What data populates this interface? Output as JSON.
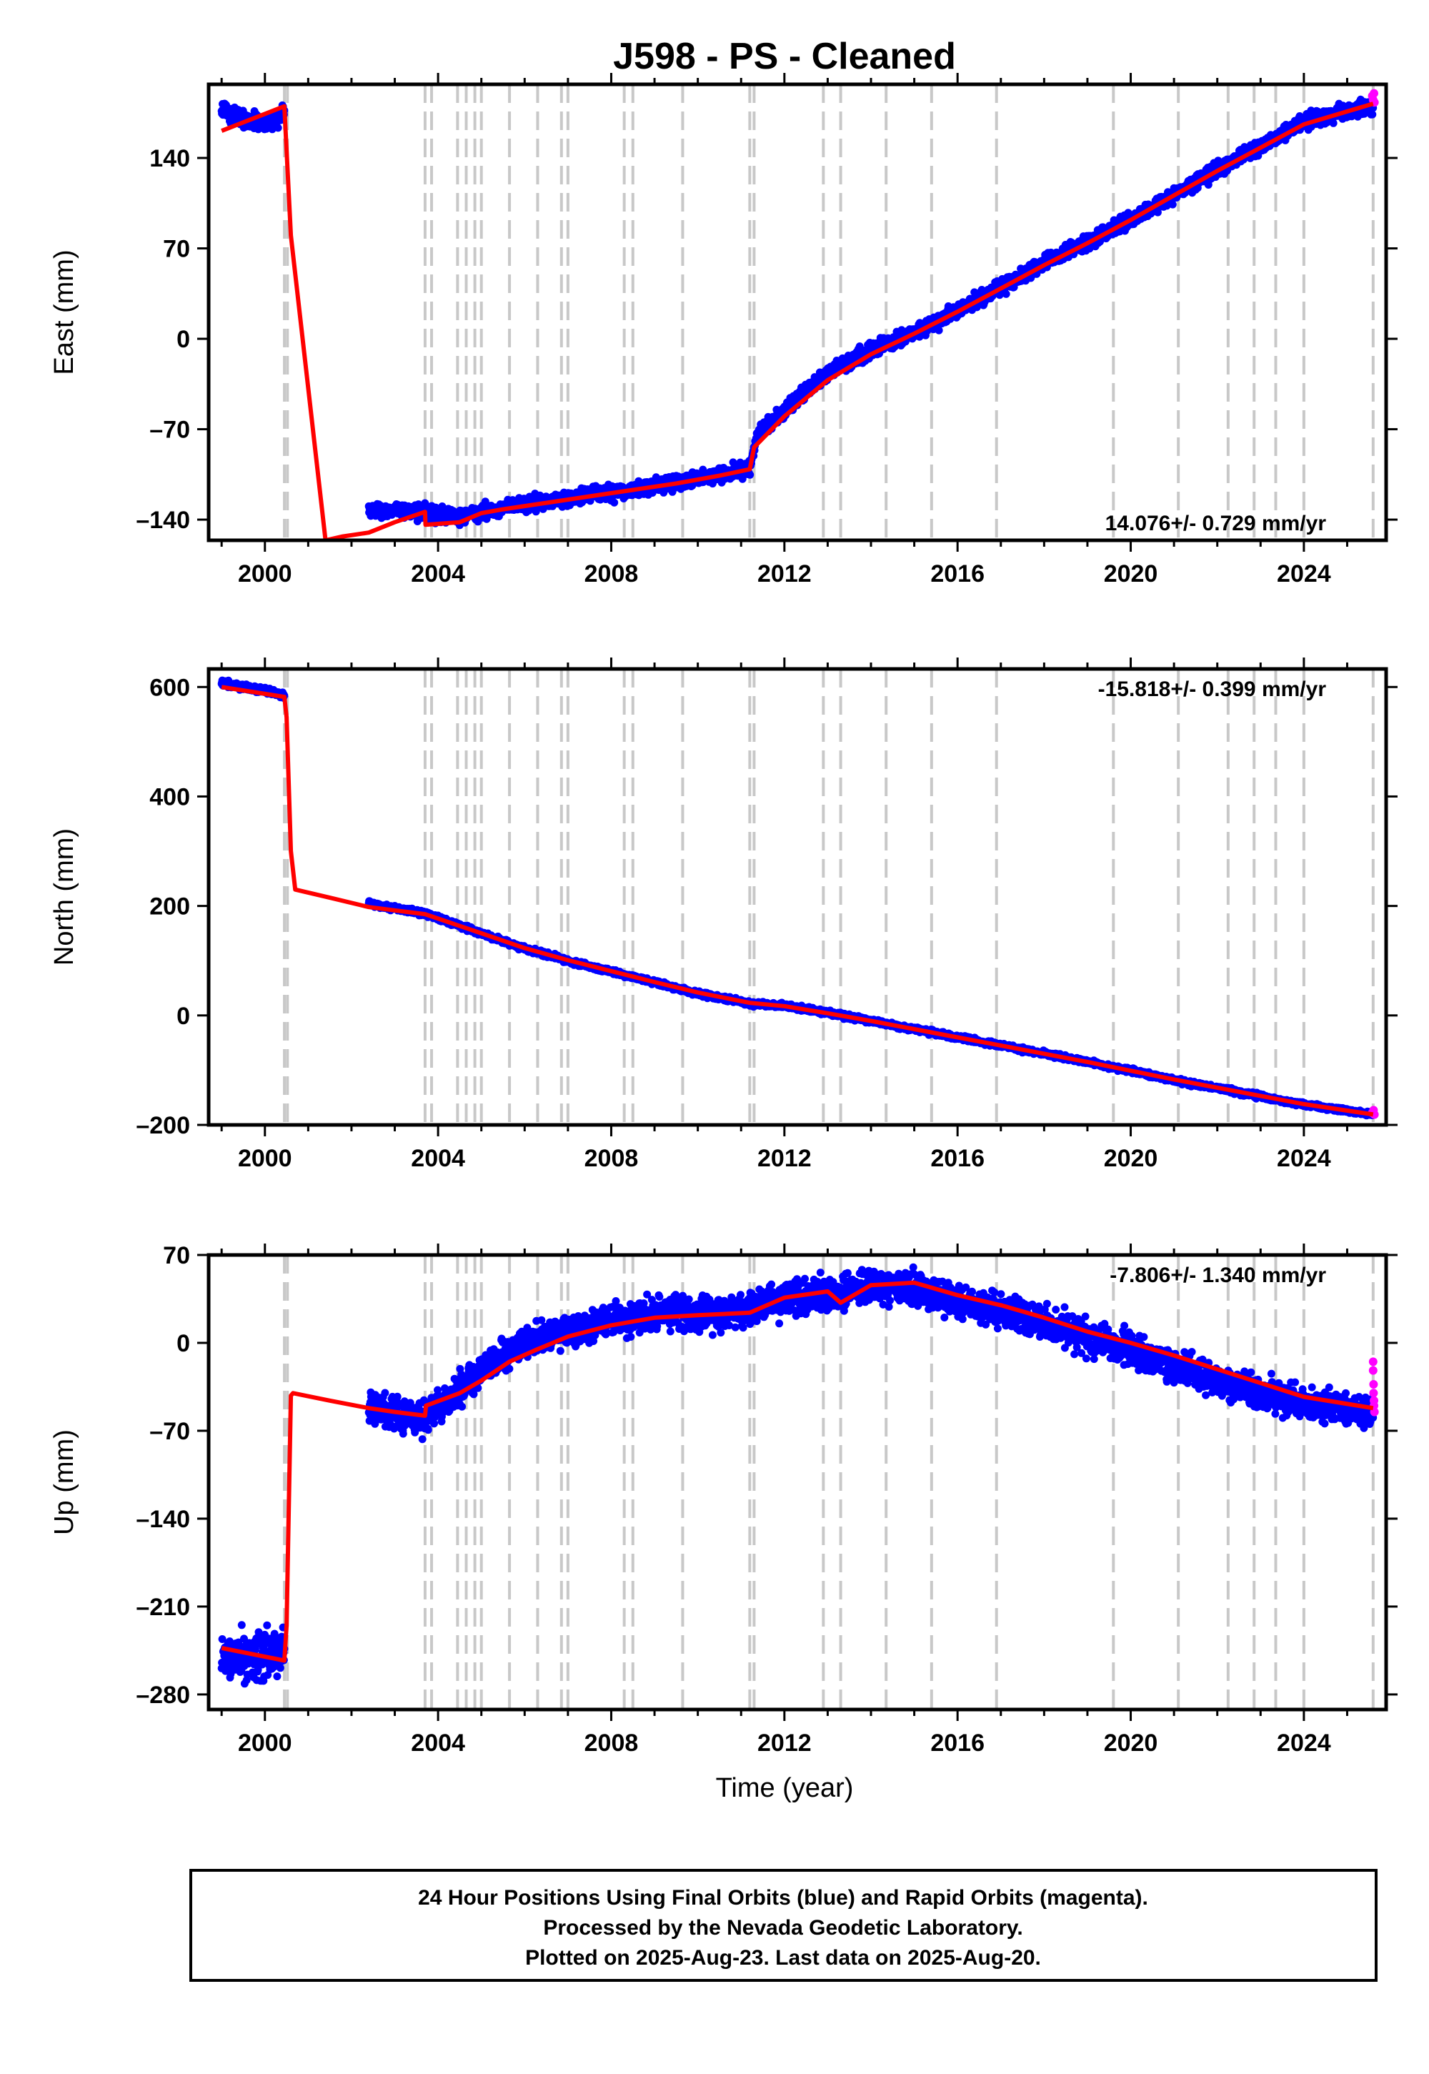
{
  "chart_data": {
    "title": "J598  - PS - Cleaned",
    "type": "scatter",
    "xlabel": "Time (year)",
    "xlim": [
      1998.7,
      2025.9
    ],
    "x_ticks": [
      2000,
      2004,
      2008,
      2012,
      2016,
      2020,
      2024
    ],
    "x_tick_labels": [
      "2000",
      "2004",
      "2008",
      "2012",
      "2016",
      "2020",
      "2024"
    ],
    "equipment_change_epochs": [
      2000.45,
      2000.52,
      2003.7,
      2003.85,
      2004.45,
      2004.65,
      2004.85,
      2005.0,
      2005.65,
      2006.3,
      2006.85,
      2007.0,
      2008.3,
      2008.5,
      2009.65,
      2011.2,
      2011.3,
      2012.9,
      2013.3,
      2014.35,
      2015.4,
      2016.9,
      2019.6,
      2021.1,
      2022.25,
      2022.85,
      2023.35,
      2024.0,
      2025.6
    ],
    "panels": [
      {
        "ylabel": "East (mm)",
        "ylim": [
          -156,
          197
        ],
        "y_ticks": [
          -140,
          -70,
          0,
          70,
          140
        ],
        "y_tick_labels": [
          "–140",
          "–70",
          "0",
          "70",
          "140"
        ],
        "rate": "14.076+/- 0.729 mm/yr",
        "rate_position": "bottom-right",
        "series": [
          {
            "x": [
              1999.0,
              1999.5,
              2000.0,
              2000.45
            ],
            "y": [
              178,
              170,
              166,
              175
            ],
            "style": "scatter",
            "color": "#0000ff",
            "noise": 5
          },
          {
            "x": [
              2002.4,
              2003.0,
              2003.7,
              2004.5,
              2005.5,
              2006.5,
              2007.5,
              2008.5,
              2009.5,
              2010.5,
              2011.2,
              2011.4,
              2012.0,
              2013.0,
              2014.0,
              2015.0,
              2016.0,
              2017.0,
              2018.0,
              2019.0,
              2020.0,
              2021.0,
              2022.0,
              2023.0,
              2024.0,
              2025.6
            ],
            "y": [
              -132,
              -133,
              -135,
              -138,
              -131,
              -126,
              -121,
              -117,
              -111,
              -106,
              -100,
              -73,
              -55,
              -26,
              -9,
              5,
              21,
              40,
              59,
              75,
              92,
              111,
              131,
              149,
              168,
              181
            ],
            "style": "scatter",
            "color": "#0000ff",
            "noise": 4
          },
          {
            "x": [
              2025.58,
              2025.6,
              2025.62,
              2025.63
            ],
            "y": [
              188,
              185,
              190,
              183
            ],
            "style": "scatter",
            "color": "#ff00ff"
          },
          {
            "x": [
              1999.0,
              2000.45,
              2000.48,
              2000.6,
              2001.4,
              2001.8,
              2002.4,
              2003.0,
              2003.7,
              2003.71,
              2004.5,
              2005.0,
              2005.5,
              2006.5,
              2007.5,
              2008.5,
              2009.5,
              2010.5,
              2011.2,
              2011.3,
              2012.0,
              2013.0,
              2014.0,
              2015.0,
              2016.0,
              2017.0,
              2018.0,
              2019.0,
              2020.0,
              2021.0,
              2022.0,
              2023.0,
              2024.0,
              2025.6
            ],
            "y": [
              161,
              180,
              160,
              80,
              -156,
              -153,
              -150,
              -142,
              -134,
              -144,
              -142,
              -135,
              -132,
              -127,
              -122,
              -117,
              -112,
              -106,
              -101,
              -84,
              -60,
              -32,
              -12,
              4,
              21,
              39,
              57,
              74,
              92,
              111,
              130,
              148,
              166,
              182
            ],
            "style": "line",
            "color": "#ff0000"
          }
        ]
      },
      {
        "ylabel": "North (mm)",
        "ylim": [
          -200,
          633
        ],
        "y_ticks": [
          -200,
          0,
          200,
          400,
          600
        ],
        "y_tick_labels": [
          "–200",
          "0",
          "200",
          "400",
          "600"
        ],
        "rate": "-15.818+/- 0.399 mm/yr",
        "rate_position": "top-right",
        "series": [
          {
            "x": [
              1999.0,
              1999.5,
              2000.0,
              2000.45
            ],
            "y": [
              608,
              600,
              594,
              584
            ],
            "style": "scatter",
            "color": "#0000ff",
            "noise": 4
          },
          {
            "x": [
              2002.4,
              2003.0,
              2003.7,
              2005.0,
              2006.0,
              2007.0,
              2008.0,
              2009.0,
              2010.0,
              2011.2,
              2012.0,
              2013.0,
              2014.0,
              2015.0,
              2016.0,
              2017.0,
              2018.0,
              2019.0,
              2020.0,
              2021.0,
              2022.0,
              2023.0,
              2024.0,
              2025.6
            ],
            "y": [
              205,
              195,
              186,
              150,
              122,
              100,
              80,
              60,
              40,
              22,
              18,
              5,
              -10,
              -25,
              -40,
              -55,
              -70,
              -85,
              -101,
              -118,
              -133,
              -148,
              -163,
              -181
            ],
            "style": "scatter",
            "color": "#0000ff",
            "noise": 3
          },
          {
            "x": [
              2025.58,
              2025.61,
              2025.63
            ],
            "y": [
              -178,
              -173,
              -181
            ],
            "style": "scatter",
            "color": "#ff00ff"
          },
          {
            "x": [
              1999.0,
              2000.45,
              2000.5,
              2000.6,
              2000.7,
              2001.5,
              2002.4,
              2003.0,
              2003.7,
              2005.0,
              2006.0,
              2007.0,
              2008.0,
              2009.0,
              2010.0,
              2011.2,
              2012.0,
              2013.0,
              2014.0,
              2015.0,
              2016.0,
              2017.0,
              2018.0,
              2019.0,
              2020.0,
              2021.0,
              2022.0,
              2023.0,
              2024.0,
              2025.6
            ],
            "y": [
              600,
              582,
              545,
              300,
              230,
              215,
              198,
              192,
              185,
              150,
              123,
              101,
              81,
              61,
              42,
              23,
              17,
              4,
              -10,
              -25,
              -40,
              -55,
              -70,
              -85,
              -101,
              -117,
              -132,
              -147,
              -162,
              -181
            ],
            "style": "line",
            "color": "#ff0000"
          }
        ]
      },
      {
        "ylabel": "Up (mm)",
        "ylim": [
          -292,
          70
        ],
        "y_ticks": [
          -280,
          -210,
          -140,
          -70,
          0,
          70
        ],
        "y_tick_labels": [
          "–280",
          "–210",
          "–140",
          "–70",
          "0",
          "70"
        ],
        "rate": "-7.806+/- 1.340 mm/yr",
        "rate_position": "top-right",
        "series": [
          {
            "x": [
              1999.0,
              1999.5,
              2000.0,
              2000.45
            ],
            "y": [
              -250,
              -250,
              -251,
              -240
            ],
            "style": "scatter",
            "color": "#0000ff",
            "noise": 13
          },
          {
            "x": [
              2002.4,
              2003.0,
              2003.7,
              2004.5,
              2005.0,
              2006.0,
              2007.0,
              2008.0,
              2009.0,
              2010.0,
              2011.0,
              2012.0,
              2013.0,
              2014.0,
              2015.0,
              2016.0,
              2017.0,
              2018.0,
              2019.0,
              2020.0,
              2021.0,
              2022.0,
              2023.0,
              2024.0,
              2025.6
            ],
            "y": [
              -52,
              -56,
              -60,
              -38,
              -22,
              0,
              10,
              17,
              22,
              22,
              25,
              36,
              39,
              45,
              44,
              33,
              26,
              15,
              4,
              -6,
              -18,
              -30,
              -40,
              -48,
              -56
            ],
            "style": "scatter",
            "color": "#0000ff",
            "noise": 9
          },
          {
            "x": [
              2025.6,
              2025.6,
              2025.61,
              2025.61,
              2025.62,
              2025.62,
              2025.63
            ],
            "y": [
              -15,
              -22,
              -33,
              -40,
              -46,
              -50,
              -55
            ],
            "style": "scatter",
            "color": "#ff00ff"
          },
          {
            "x": [
              1999.0,
              2000.45,
              2000.5,
              2000.6,
              2000.65,
              2001.5,
              2002.4,
              2003.0,
              2003.7,
              2003.72,
              2004.5,
              2005.0,
              2005.65,
              2006.3,
              2007.0,
              2008.0,
              2009.0,
              2010.0,
              2011.2,
              2012.0,
              2013.0,
              2013.3,
              2014.0,
              2015.0,
              2016.0,
              2017.0,
              2018.0,
              2019.0,
              2020.0,
              2021.0,
              2022.0,
              2023.0,
              2024.0,
              2025.6
            ],
            "y": [
              -243,
              -253,
              -225,
              -42,
              -40,
              -46,
              -52,
              -55,
              -58,
              -50,
              -40,
              -30,
              -15,
              -5,
              5,
              14,
              20,
              22,
              24,
              36,
              41,
              32,
              46,
              48,
              38,
              30,
              20,
              9,
              0,
              -10,
              -21,
              -32,
              -43,
              -52
            ],
            "style": "line",
            "color": "#ff0000"
          }
        ]
      }
    ]
  },
  "footer": {
    "line1": "24 Hour Positions Using Final Orbits (blue) and Rapid Orbits (magenta).",
    "line2": "Processed by the Nevada Geodetic Laboratory.",
    "line3": "Plotted on 2025-Aug-23. Last data on 2025-Aug-20."
  }
}
